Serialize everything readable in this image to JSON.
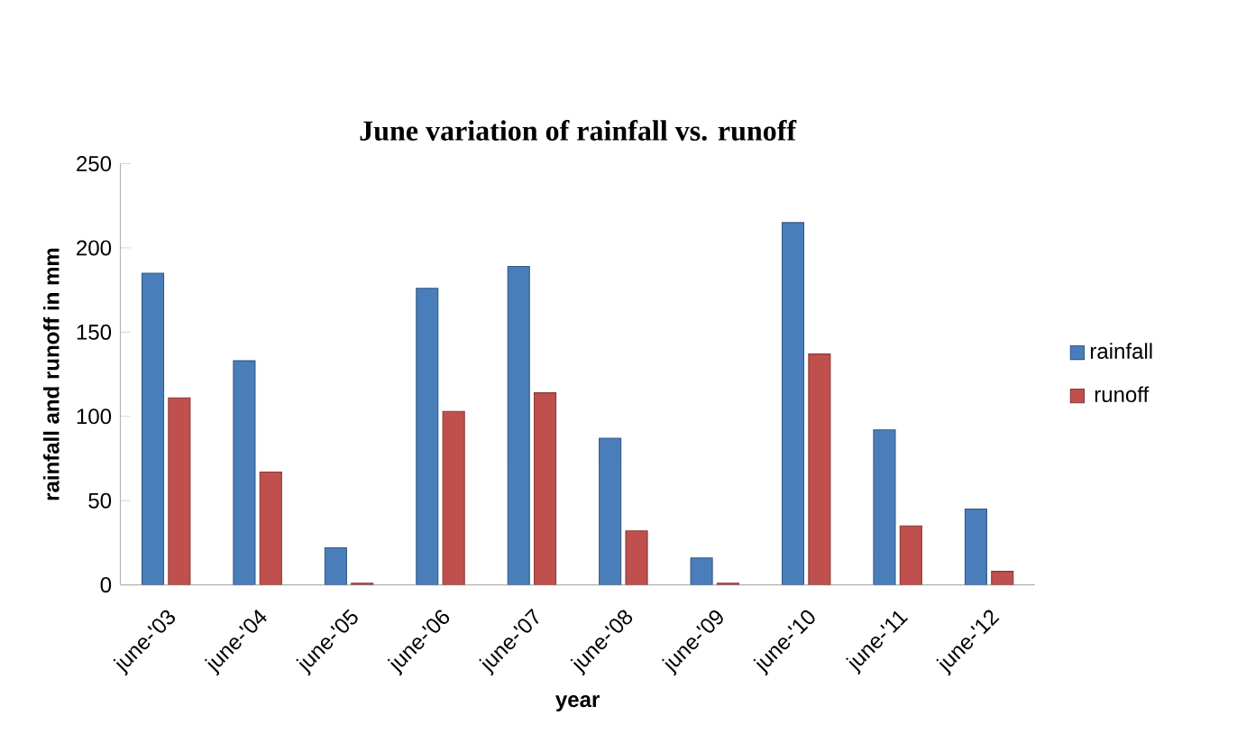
{
  "chart_data": {
    "type": "bar",
    "title": "June variation of rainfall vs. runoff",
    "xlabel": "year",
    "ylabel": "rainfall and runoff in mm",
    "categories": [
      "june-'03",
      "june-'04",
      "june-'05",
      "june-'06",
      "june-'07",
      "june-'08",
      "june-'09",
      "june-'10",
      "june-'11",
      "june-'12"
    ],
    "series": [
      {
        "name": "rainfall",
        "color": "#4a7ebb",
        "values": [
          185,
          133,
          22,
          176,
          189,
          87,
          16,
          215,
          92,
          45
        ]
      },
      {
        "name": "runoff",
        "color": "#c0504d",
        "values": [
          111,
          67,
          1,
          103,
          114,
          32,
          1,
          137,
          35,
          8
        ]
      }
    ],
    "ylim": [
      0,
      250
    ],
    "yticks": [
      0,
      50,
      100,
      150,
      200,
      250
    ],
    "grid": false,
    "legend": "right"
  }
}
